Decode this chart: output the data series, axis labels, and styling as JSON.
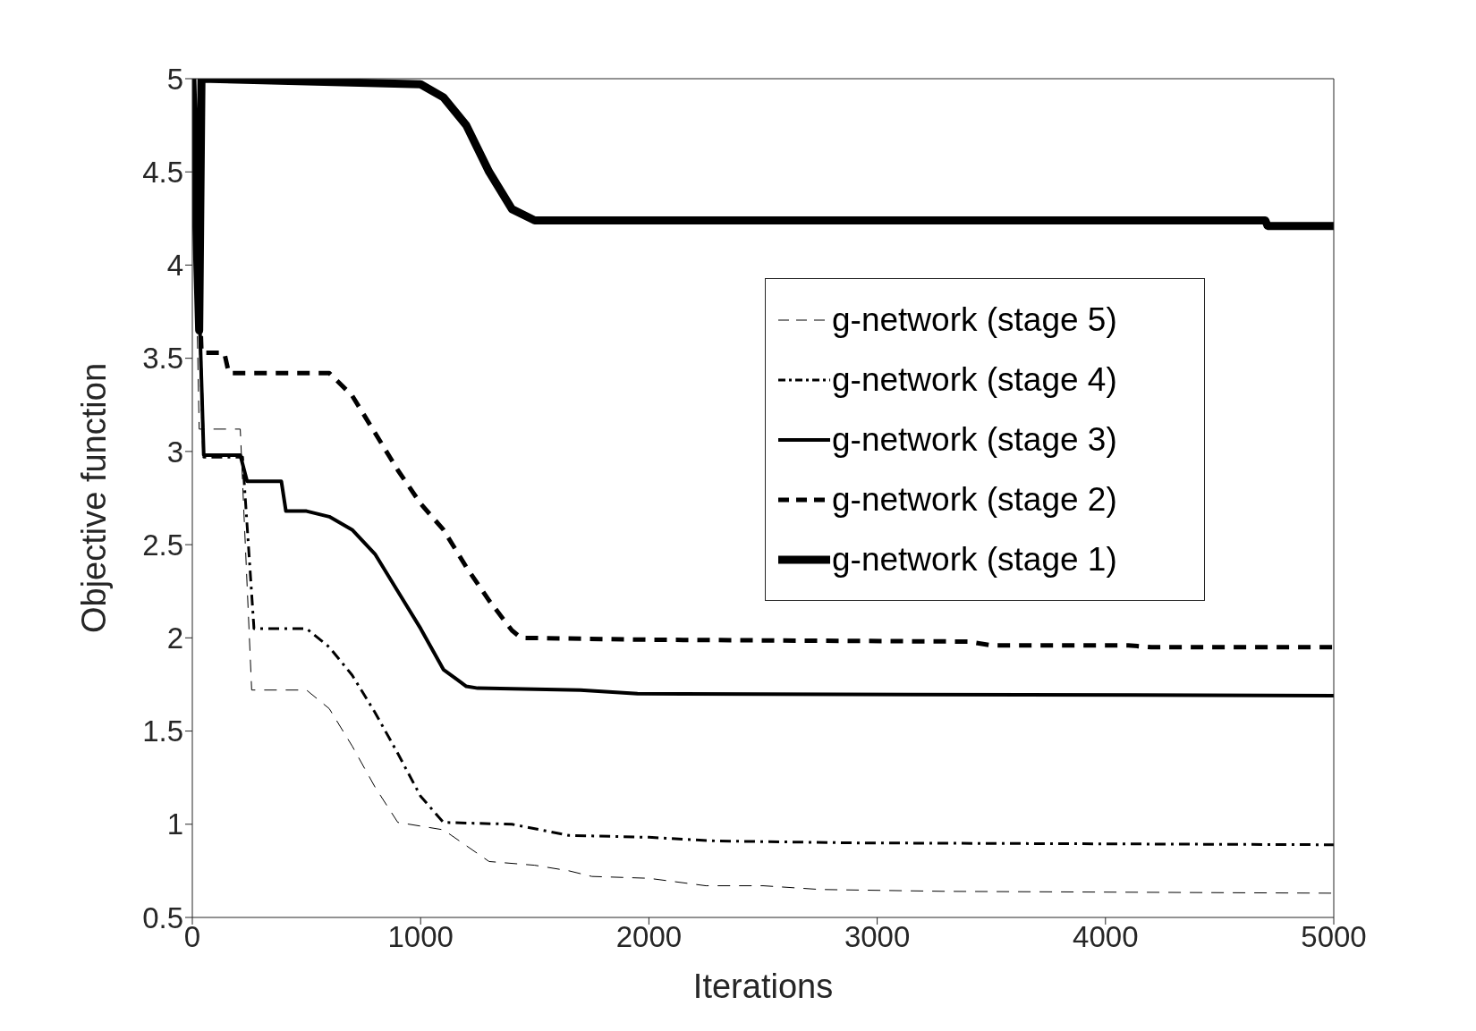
{
  "chart_data": {
    "type": "line",
    "xlabel": "Iterations",
    "ylabel": "Objective function",
    "xlim": [
      0,
      5000
    ],
    "xticks": [
      0,
      1000,
      2000,
      3000,
      4000,
      5000
    ],
    "ylim": [
      0.5,
      5
    ],
    "yticks": [
      0.5,
      1,
      1.5,
      2,
      2.5,
      3,
      3.5,
      4,
      4.5,
      5
    ],
    "legend": "top right",
    "marker": "none",
    "series": [
      {
        "name": "g-network (stage 5)",
        "color": "#000000",
        "line_style": "dashed",
        "x": [
          0,
          30,
          210,
          260,
          500,
          600,
          700,
          800,
          900,
          1100,
          1300,
          1500,
          1650,
          1750,
          2000,
          2250,
          2500,
          2750,
          3300,
          5000
        ],
        "values": [
          5,
          3.12,
          3.12,
          1.72,
          1.72,
          1.62,
          1.42,
          1.2,
          1.01,
          0.97,
          0.8,
          0.78,
          0.75,
          0.72,
          0.71,
          0.67,
          0.67,
          0.65,
          0.64,
          0.63
        ]
      },
      {
        "name": "g-network (stage 4)",
        "color": "#000000",
        "line_style": "dashdot",
        "x": [
          0,
          50,
          220,
          270,
          500,
          600,
          700,
          800,
          900,
          1000,
          1100,
          1400,
          1650,
          2000,
          2300,
          2900,
          5000
        ],
        "values": [
          5,
          2.97,
          2.97,
          2.05,
          2.05,
          1.95,
          1.8,
          1.6,
          1.38,
          1.15,
          1.01,
          1,
          0.94,
          0.93,
          0.91,
          0.9,
          0.89
        ]
      },
      {
        "name": "g-network (stage 3)",
        "color": "#000000",
        "line_style": "solid",
        "x": [
          0,
          50,
          210,
          240,
          390,
          410,
          500,
          600,
          700,
          800,
          900,
          1000,
          1100,
          1200,
          1250,
          1700,
          1950,
          5000
        ],
        "values": [
          5,
          2.98,
          2.98,
          2.84,
          2.84,
          2.68,
          2.68,
          2.65,
          2.58,
          2.45,
          2.25,
          2.05,
          1.83,
          1.74,
          1.73,
          1.72,
          1.7,
          1.69
        ]
      },
      {
        "name": "g-network (stage 2)",
        "color": "#000000",
        "line_style": "dashed",
        "x": [
          0,
          40,
          140,
          160,
          600,
          700,
          800,
          900,
          1000,
          1100,
          1200,
          1300,
          1400,
          1440,
          2000,
          3400,
          3500,
          4100,
          4200,
          5000
        ],
        "values": [
          5,
          3.53,
          3.53,
          3.42,
          3.42,
          3.3,
          3.1,
          2.9,
          2.72,
          2.58,
          2.38,
          2.2,
          2.04,
          2,
          1.99,
          1.98,
          1.96,
          1.96,
          1.95,
          1.95
        ]
      },
      {
        "name": "g-network (stage 1)",
        "color": "#000000",
        "line_style": "solid",
        "x": [
          0,
          30,
          40,
          1000,
          1100,
          1200,
          1300,
          1400,
          1500,
          4700,
          4710,
          5000
        ],
        "values": [
          5,
          3.65,
          5,
          4.97,
          4.9,
          4.75,
          4.5,
          4.3,
          4.24,
          4.24,
          4.21,
          4.21
        ]
      }
    ]
  }
}
